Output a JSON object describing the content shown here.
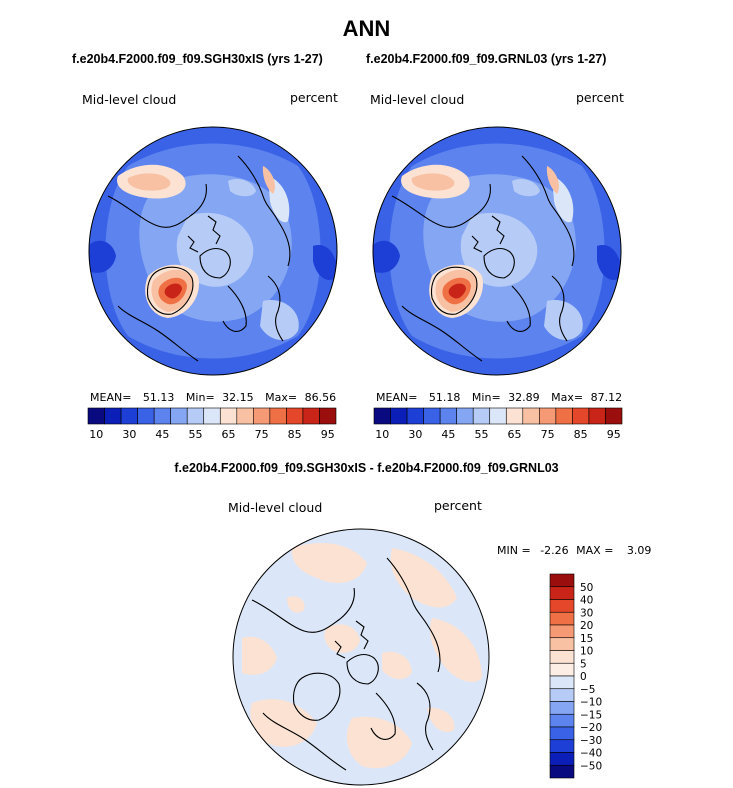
{
  "title": "ANN",
  "colors": {
    "diverging": [
      "#0a0a80",
      "#0b1fb8",
      "#1e3fd6",
      "#3a62e6",
      "#5c83ee",
      "#85a6f3",
      "#b6ccf7",
      "#dbe7f8",
      "#fbe2d3",
      "#f8c1a3",
      "#f59a74",
      "#f07045",
      "#e4472a",
      "#c82518",
      "#9b0e0e"
    ],
    "land": "#000000"
  },
  "panels": [
    {
      "case": "f.e20b4.F2000.f09_f09.SGH30xIS (yrs 1-27)",
      "field": "Mid-level cloud",
      "units": "percent",
      "mean_label": "MEAN=",
      "mean": "51.13",
      "min_label": "Min=",
      "min": "32.15",
      "max_label": "Max=",
      "max": "86.56"
    },
    {
      "case": "f.e20b4.F2000.f09_f09.GRNL03 (yrs 1-27)",
      "field": "Mid-level cloud",
      "units": "percent",
      "mean_label": "MEAN=",
      "mean": "51.18",
      "min_label": "Min=",
      "min": "32.89",
      "max_label": "Max=",
      "max": "87.12"
    }
  ],
  "diff": {
    "case": "f.e20b4.F2000.f09_f09.SGH30xIS - f.e20b4.F2000.f09_f09.GRNL03",
    "field": "Mid-level cloud",
    "units": "percent",
    "min_label": "MIN =",
    "min": "-2.26",
    "max_label": "MAX =",
    "max": "3.09"
  },
  "chart_data": [
    {
      "type": "heatmap",
      "projection": "north-polar-stereographic",
      "title": "f.e20b4.F2000.f09_f09.SGH30xIS (yrs 1-27)",
      "variable": "Mid-level cloud",
      "units": "percent",
      "mean": 51.13,
      "min": 32.15,
      "max": 86.56,
      "colorbar": {
        "orientation": "horizontal",
        "levels": [
          10,
          15,
          20,
          25,
          30,
          35,
          40,
          45,
          50,
          55,
          60,
          65,
          70,
          75,
          80,
          85,
          90,
          95
        ],
        "tick_labels": [
          "10",
          "30",
          "45",
          "55",
          "65",
          "75",
          "85",
          "95"
        ]
      }
    },
    {
      "type": "heatmap",
      "projection": "north-polar-stereographic",
      "title": "f.e20b4.F2000.f09_f09.GRNL03 (yrs 1-27)",
      "variable": "Mid-level cloud",
      "units": "percent",
      "mean": 51.18,
      "min": 32.89,
      "max": 87.12,
      "colorbar": {
        "orientation": "horizontal",
        "levels": [
          10,
          15,
          20,
          25,
          30,
          35,
          40,
          45,
          50,
          55,
          60,
          65,
          70,
          75,
          80,
          85,
          90,
          95
        ],
        "tick_labels": [
          "10",
          "30",
          "45",
          "55",
          "65",
          "75",
          "85",
          "95"
        ]
      }
    },
    {
      "type": "heatmap",
      "projection": "north-polar-stereographic",
      "title": "f.e20b4.F2000.f09_f09.SGH30xIS - f.e20b4.F2000.f09_f09.GRNL03",
      "variable": "Mid-level cloud",
      "units": "percent",
      "min": -2.26,
      "max": 3.09,
      "colorbar": {
        "orientation": "vertical",
        "levels": [
          50,
          40,
          30,
          20,
          15,
          10,
          5,
          0,
          -5,
          -10,
          -15,
          -20,
          -30,
          -40,
          -50
        ],
        "tick_labels": [
          "50",
          "40",
          "30",
          "20",
          "15",
          "10",
          "5",
          "0",
          "−5",
          "−10",
          "−15",
          "−20",
          "−30",
          "−40",
          "−50"
        ]
      }
    }
  ]
}
